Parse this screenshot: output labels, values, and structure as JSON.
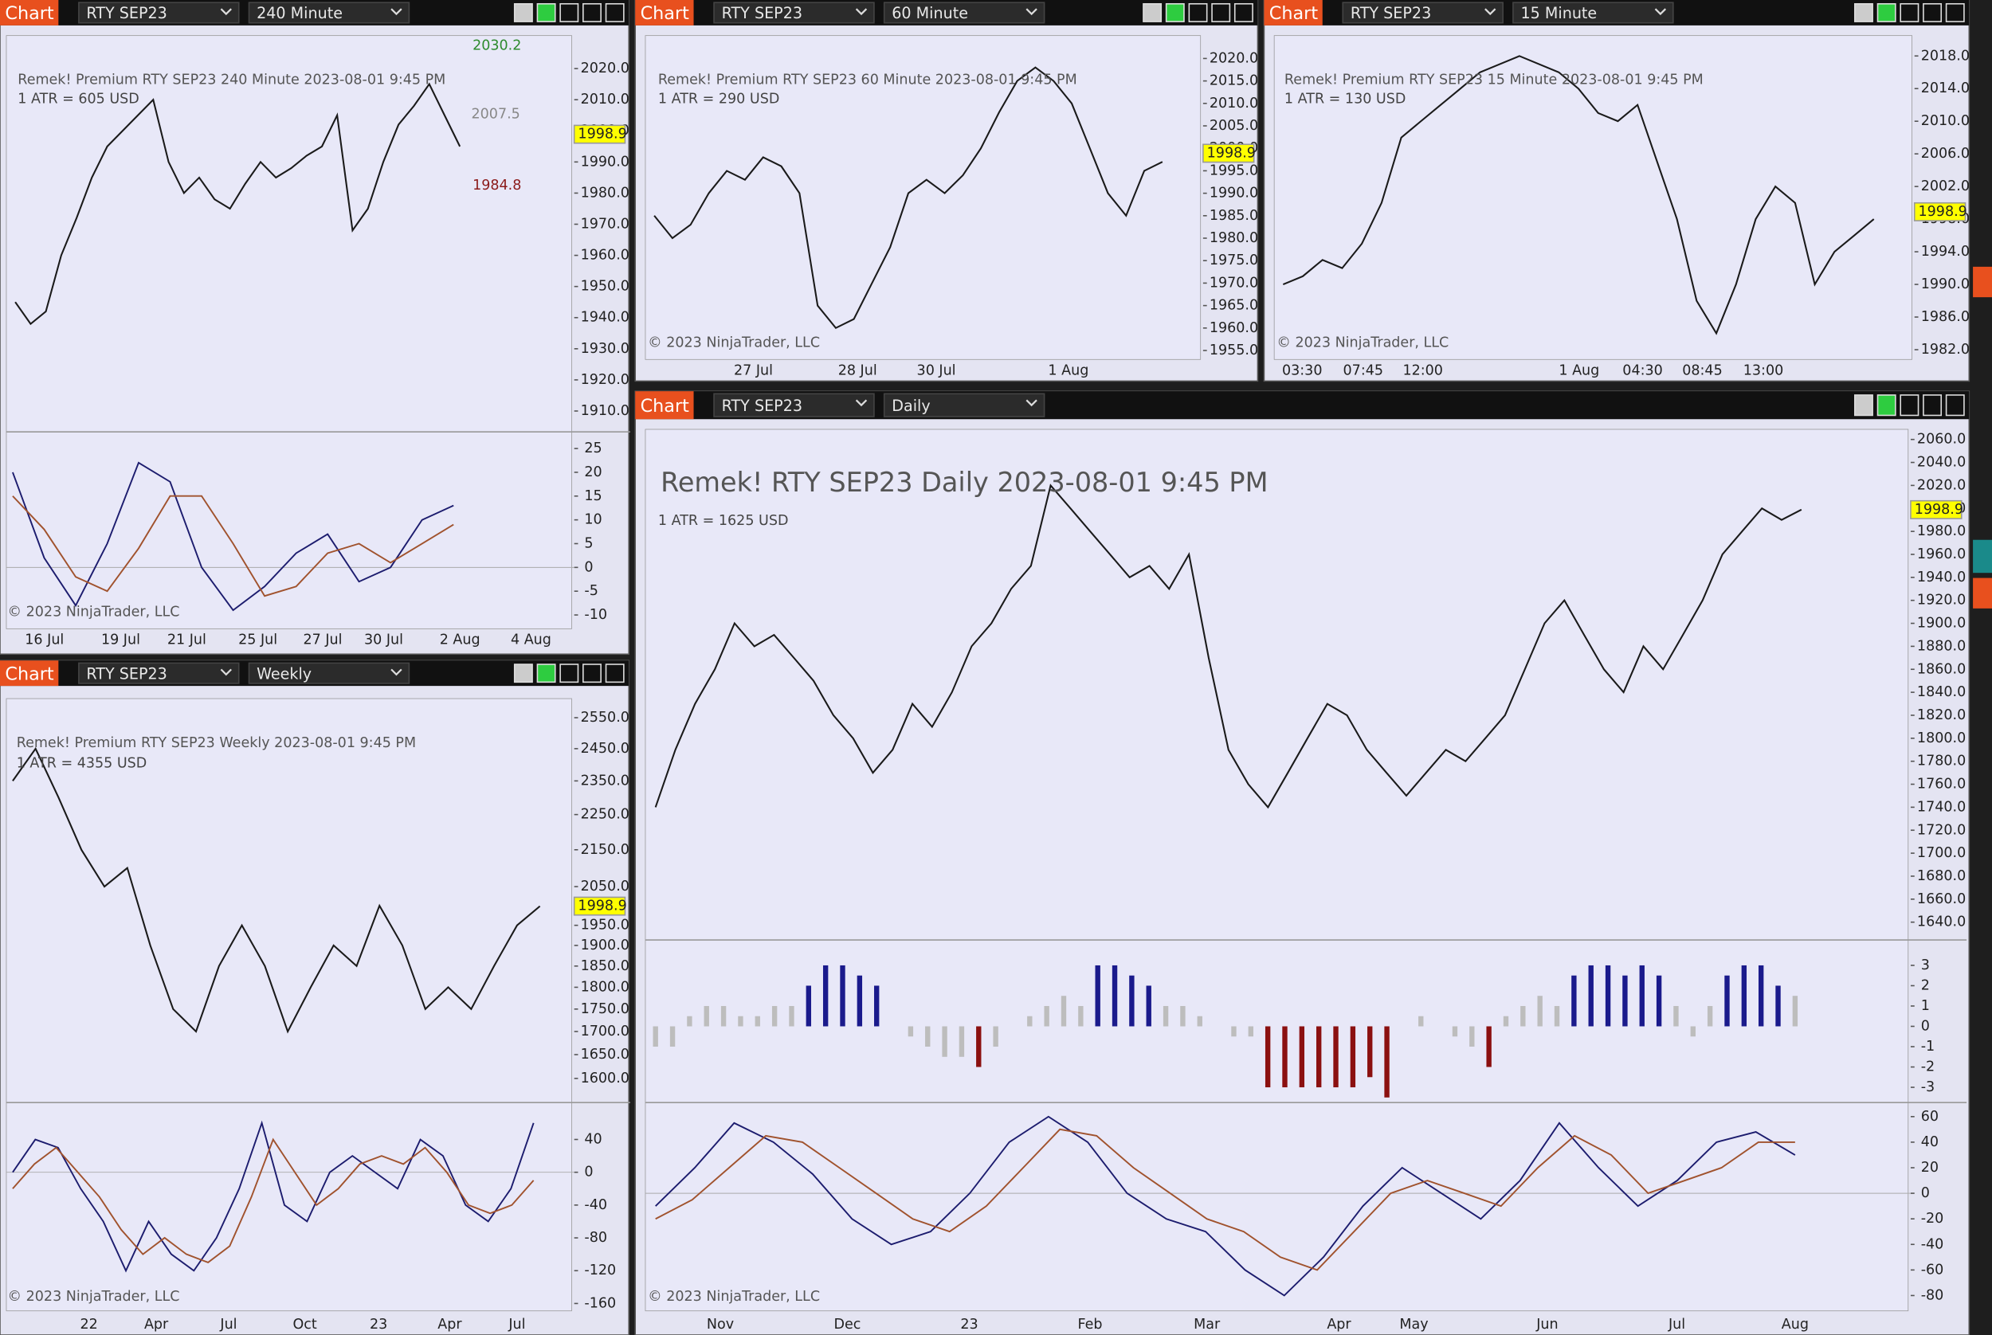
{
  "windows": [
    {
      "tab": "Chart",
      "instrument": "RTY SEP23",
      "interval": "240 Minute",
      "title": "Remek!  Premium  RTY SEP23  240 Minute  2023-08-01 9:45 PM",
      "atr": "1 ATR = 605 USD",
      "copyright": "© 2023 NinjaTrader, LLC",
      "last": {
        "value": 1998.9,
        "label": "1998.9"
      },
      "annotations": [
        "2030.2",
        "2007.5",
        "1984.8"
      ],
      "time_labels": [
        "16 Jul",
        "19 Jul",
        "21 Jul",
        "25 Jul",
        "27 Jul",
        "30 Jul",
        "2 Aug",
        "4 Aug"
      ],
      "price": {
        "ylim": [
          1903.3,
          2030.6
        ],
        "yticks": [
          {
            "value": 2020,
            "label": "2020.0"
          },
          {
            "value": 2010,
            "label": "2010.0"
          },
          {
            "value": 2000,
            "label": "2000.0"
          },
          {
            "value": 1990,
            "label": "1990.0"
          },
          {
            "value": 1980,
            "label": "1980.0"
          },
          {
            "value": 1970,
            "label": "1970.0"
          },
          {
            "value": 1960,
            "label": "1960.0"
          },
          {
            "value": 1950,
            "label": "1950.0"
          },
          {
            "value": 1940,
            "label": "1940.0"
          },
          {
            "value": 1930,
            "label": "1930.0"
          },
          {
            "value": 1920,
            "label": "1920.0"
          },
          {
            "value": 1910,
            "label": "1910.0"
          }
        ],
        "closes": [
          1945,
          1938,
          1942,
          1960,
          1972,
          1985,
          1995,
          2000,
          2005,
          2010,
          1990,
          1980,
          1985,
          1978,
          1975,
          1983,
          1990,
          1985,
          1988,
          1992,
          1995,
          2005,
          1968,
          1975,
          1990,
          2002,
          2008,
          2015,
          2005,
          1995
        ]
      },
      "osc": {
        "ylim": [
          -12.9,
          28.5
        ],
        "yticks": [
          25,
          20,
          15,
          10,
          5,
          0,
          -5,
          -10
        ],
        "lines": [
          {
            "color": "#1c1c6e",
            "values": [
              20,
              2,
              -8,
              5,
              22,
              18,
              0,
              -9,
              -4,
              3,
              7,
              -3,
              0,
              10,
              13
            ]
          },
          {
            "color": "#a0522d",
            "values": [
              15,
              8,
              -2,
              -5,
              4,
              15,
              15,
              5,
              -6,
              -4,
              3,
              5,
              1,
              5,
              9
            ]
          }
        ]
      }
    },
    {
      "tab": "Chart",
      "instrument": "RTY SEP23",
      "interval": "60 Minute",
      "title": "Remek!  Premium  RTY SEP23  60 Minute  2023-08-01 9:45 PM",
      "atr": "1 ATR = 290 USD",
      "copyright": "© 2023 NinjaTrader, LLC",
      "last": {
        "value": 1998.9,
        "label": "1998.9"
      },
      "time_labels": [
        "27 Jul",
        "28 Jul",
        "30 Jul",
        "1 Aug"
      ],
      "price": {
        "ylim": [
          1953.0,
          2025.1
        ],
        "yticks": [
          {
            "value": 2020,
            "label": "2020.0"
          },
          {
            "value": 2015,
            "label": "2015.0"
          },
          {
            "value": 2010,
            "label": "2010.0"
          },
          {
            "value": 2005,
            "label": "2005.0"
          },
          {
            "value": 2000,
            "label": "2000.0"
          },
          {
            "value": 1995,
            "label": "1995.0"
          },
          {
            "value": 1990,
            "label": "1990.0"
          },
          {
            "value": 1985,
            "label": "1985.0"
          },
          {
            "value": 1980,
            "label": "1980.0"
          },
          {
            "value": 1975,
            "label": "1975.0"
          },
          {
            "value": 1970,
            "label": "1970.0"
          },
          {
            "value": 1965,
            "label": "1965.0"
          },
          {
            "value": 1960,
            "label": "1960.0"
          },
          {
            "value": 1955,
            "label": "1955.0"
          }
        ],
        "closes": [
          1985,
          1980,
          1983,
          1990,
          1995,
          1993,
          1998,
          1996,
          1990,
          1965,
          1960,
          1962,
          1970,
          1978,
          1990,
          1993,
          1990,
          1994,
          2000,
          2008,
          2015,
          2018,
          2015,
          2010,
          2000,
          1990,
          1985,
          1995,
          1997
        ]
      }
    },
    {
      "tab": "Chart",
      "instrument": "RTY SEP23",
      "interval": "15 Minute",
      "title": "Remek!  Premium  RTY SEP23  15 Minute  2023-08-01 9:45 PM",
      "atr": "1 ATR = 130 USD",
      "copyright": "© 2023 NinjaTrader, LLC",
      "last": {
        "value": 1998.9,
        "label": "1998.9"
      },
      "time_labels": [
        "03:30",
        "07:45",
        "12:00",
        "1 Aug",
        "04:30",
        "08:45",
        "13:00"
      ],
      "price": {
        "ylim": [
          1980.8,
          2020.5
        ],
        "yticks": [
          {
            "value": 2018,
            "label": "2018.0"
          },
          {
            "value": 2014,
            "label": "2014.0"
          },
          {
            "value": 2010,
            "label": "2010.0"
          },
          {
            "value": 2006,
            "label": "2006.0"
          },
          {
            "value": 2002,
            "label": "2002.0"
          },
          {
            "value": 1998,
            "label": "1998.0"
          },
          {
            "value": 1994,
            "label": "1994.0"
          },
          {
            "value": 1990,
            "label": "1990.0"
          },
          {
            "value": 1986,
            "label": "1986.0"
          },
          {
            "value": 1982,
            "label": "1982.0"
          }
        ],
        "closes": [
          1990,
          1991,
          1993,
          1992,
          1995,
          2000,
          2008,
          2010,
          2012,
          2014,
          2016,
          2017,
          2018,
          2017,
          2016,
          2014,
          2011,
          2010,
          2012,
          2005,
          1998,
          1988,
          1984,
          1990,
          1998,
          2002,
          2000,
          1990,
          1994,
          1996,
          1998
        ]
      }
    },
    {
      "tab": "Chart",
      "instrument": "RTY SEP23",
      "interval": "Daily",
      "title": "Remek!  RTY SEP23  Daily  2023-08-01 9:45 PM",
      "atr": "1 ATR = 1625 USD",
      "copyright": "© 2023 NinjaTrader, LLC",
      "last": {
        "value": 1998.9,
        "label": "1998.9"
      },
      "time_labels": [
        "Nov",
        "Dec",
        "23",
        "Feb",
        "Mar",
        "Apr",
        "May",
        "Jun",
        "Jul",
        "Aug"
      ],
      "price": {
        "ylim": [
          1624.5,
          2068.8
        ],
        "yticks": [
          {
            "value": 2060,
            "label": "2060.0"
          },
          {
            "value": 2040,
            "label": "2040.0"
          },
          {
            "value": 2020,
            "label": "2020.0"
          },
          {
            "value": 2000,
            "label": "2000.0"
          },
          {
            "value": 1980,
            "label": "1980.0"
          },
          {
            "value": 1960,
            "label": "1960.0"
          },
          {
            "value": 1940,
            "label": "1940.0"
          },
          {
            "value": 1920,
            "label": "1920.0"
          },
          {
            "value": 1900,
            "label": "1900.0"
          },
          {
            "value": 1880,
            "label": "1880.0"
          },
          {
            "value": 1860,
            "label": "1860.0"
          },
          {
            "value": 1840,
            "label": "1840.0"
          },
          {
            "value": 1820,
            "label": "1820.0"
          },
          {
            "value": 1800,
            "label": "1800.0"
          },
          {
            "value": 1780,
            "label": "1780.0"
          },
          {
            "value": 1760,
            "label": "1760.0"
          },
          {
            "value": 1740,
            "label": "1740.0"
          },
          {
            "value": 1720,
            "label": "1720.0"
          },
          {
            "value": 1700,
            "label": "1700.0"
          },
          {
            "value": 1680,
            "label": "1680.0"
          },
          {
            "value": 1660,
            "label": "1660.0"
          },
          {
            "value": 1640,
            "label": "1640.0"
          }
        ],
        "closes": [
          1740,
          1790,
          1830,
          1860,
          1900,
          1880,
          1890,
          1870,
          1850,
          1820,
          1800,
          1770,
          1790,
          1830,
          1810,
          1840,
          1880,
          1900,
          1930,
          1950,
          2020,
          2000,
          1980,
          1960,
          1940,
          1950,
          1930,
          1960,
          1870,
          1790,
          1760,
          1740,
          1770,
          1800,
          1830,
          1820,
          1790,
          1770,
          1750,
          1770,
          1790,
          1780,
          1800,
          1820,
          1860,
          1900,
          1920,
          1890,
          1860,
          1840,
          1880,
          1860,
          1890,
          1920,
          1960,
          1980,
          2000,
          1990,
          1998.9
        ]
      },
      "hist": {
        "ylim": [
          -3.75,
          4.25
        ],
        "yticks": [
          3,
          2,
          1,
          0,
          -1,
          -2,
          -3
        ],
        "values": [
          -1,
          -1,
          0.5,
          1,
          1,
          0.5,
          0.5,
          1,
          1,
          2,
          3,
          3,
          2.5,
          2,
          0,
          -0.5,
          -1,
          -1.5,
          -1.5,
          -2,
          -1,
          0,
          0.5,
          1,
          1.5,
          1,
          3,
          3,
          2.5,
          2,
          1,
          1,
          0.5,
          0,
          -0.5,
          -0.5,
          -3,
          -3,
          -3,
          -3,
          -3,
          -3,
          -2.5,
          -3.5,
          0,
          0.5,
          0,
          -0.5,
          -1,
          -2,
          0.5,
          1,
          1.5,
          1,
          2.5,
          3,
          3,
          2.5,
          3,
          2.5,
          1,
          -0.5,
          1,
          2.5,
          3,
          3,
          2,
          1.5
        ]
      },
      "osc": {
        "ylim": [
          -92,
          71
        ],
        "yticks": [
          60,
          40,
          20,
          0,
          -20,
          -40,
          -60,
          -80
        ],
        "lines": [
          {
            "color": "#1c1c6e",
            "values": [
              -10,
              20,
              55,
              40,
              15,
              -20,
              -40,
              -30,
              0,
              40,
              60,
              40,
              0,
              -20,
              -30,
              -60,
              -80,
              -50,
              -10,
              20,
              0,
              -20,
              10,
              55,
              20,
              -10,
              10,
              40,
              48,
              30
            ]
          },
          {
            "color": "#a0522d",
            "values": [
              -20,
              -5,
              20,
              45,
              40,
              20,
              0,
              -20,
              -30,
              -10,
              20,
              50,
              45,
              20,
              0,
              -20,
              -30,
              -50,
              -60,
              -30,
              0,
              10,
              0,
              -10,
              20,
              45,
              30,
              0,
              10,
              20,
              40,
              40
            ]
          }
        ]
      }
    },
    {
      "tab": "Chart",
      "instrument": "RTY SEP23",
      "interval": "Weekly",
      "title": "Remek!  Premium  RTY SEP23  Weekly  2023-08-01 9:45 PM",
      "atr": "1 ATR = 4355 USD",
      "copyright": "© 2023 NinjaTrader, LLC",
      "last": {
        "value": 1998.9,
        "label": "1998.9"
      },
      "time_labels": [
        "22",
        "Apr",
        "Jul",
        "Oct",
        "23",
        "Apr",
        "Jul"
      ],
      "price": {
        "ylim": [
          1550.9,
          2613.6
        ],
        "log_scale": true,
        "yticks": [
          {
            "value": 2550,
            "label": "2550.0"
          },
          {
            "value": 2450,
            "label": "2450.0"
          },
          {
            "value": 2350,
            "label": "2350.0"
          },
          {
            "value": 2250,
            "label": "2250.0"
          },
          {
            "value": 2150,
            "label": "2150.0"
          },
          {
            "value": 2050,
            "label": "2050.0"
          },
          {
            "value": 1950,
            "label": "1950.0"
          },
          {
            "value": 1900,
            "label": "1900.0"
          },
          {
            "value": 1850,
            "label": "1850.0"
          },
          {
            "value": 1800,
            "label": "1800.0"
          },
          {
            "value": 1750,
            "label": "1750.0"
          },
          {
            "value": 1700,
            "label": "1700.0"
          },
          {
            "value": 1650,
            "label": "1650.0"
          },
          {
            "value": 1600,
            "label": "1600.0"
          }
        ],
        "closes": [
          2350,
          2450,
          2300,
          2150,
          2050,
          2100,
          1900,
          1750,
          1700,
          1850,
          1950,
          1850,
          1700,
          1800,
          1900,
          1850,
          2000,
          1900,
          1750,
          1800,
          1750,
          1850,
          1950,
          1998.9
        ]
      },
      "osc": {
        "ylim": [
          -169,
          85
        ],
        "yticks": [
          40,
          0,
          -40,
          -80,
          -120,
          -160
        ],
        "lines": [
          {
            "color": "#1c1c6e",
            "values": [
              0,
              40,
              30,
              -20,
              -60,
              -120,
              -60,
              -100,
              -120,
              -80,
              -20,
              60,
              -40,
              -60,
              0,
              20,
              0,
              -20,
              40,
              20,
              -40,
              -60,
              -20,
              60
            ]
          },
          {
            "color": "#a0522d",
            "values": [
              -20,
              10,
              30,
              0,
              -30,
              -70,
              -100,
              -80,
              -100,
              -110,
              -90,
              -30,
              40,
              0,
              -40,
              -20,
              10,
              20,
              10,
              30,
              0,
              -40,
              -50,
              -40,
              -10
            ]
          }
        ]
      }
    }
  ]
}
